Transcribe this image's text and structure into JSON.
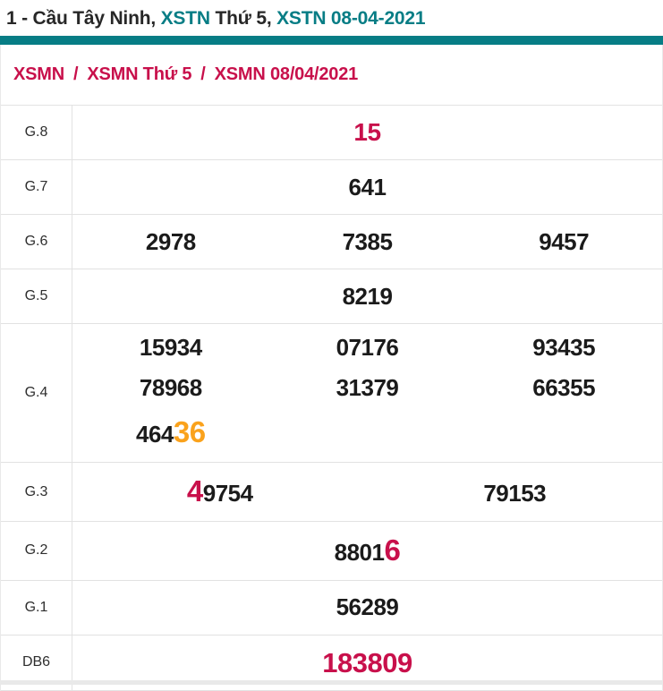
{
  "colors": {
    "teal": "#077d85",
    "red": "#c8104b",
    "orange": "#faa21c",
    "dark": "#272727",
    "value": "#1b1b1b"
  },
  "title": {
    "parts": [
      {
        "text": "1 - Cầu Tây Ninh, ",
        "link": false
      },
      {
        "text": "XSTN",
        "link": true
      },
      {
        "text": " Thứ 5, ",
        "link": false
      },
      {
        "text": "XSTN 08-04-2021",
        "link": true
      }
    ]
  },
  "breadcrumb": {
    "separator": "/",
    "items": [
      "XSMN",
      "XSMN Thứ 5",
      "XSMN 08/04/2021"
    ]
  },
  "results": {
    "rows": [
      {
        "label": "G.8",
        "lines": [
          [
            [
              {
                "text": "15",
                "color": "red",
                "size": "lg"
              }
            ]
          ]
        ]
      },
      {
        "label": "G.7",
        "lines": [
          [
            [
              {
                "text": "641"
              }
            ]
          ]
        ]
      },
      {
        "label": "G.6",
        "lines": [
          [
            [
              {
                "text": "2978"
              }
            ],
            [
              {
                "text": "7385"
              }
            ],
            [
              {
                "text": "9457"
              }
            ]
          ]
        ]
      },
      {
        "label": "G.5",
        "lines": [
          [
            [
              {
                "text": "8219"
              }
            ]
          ]
        ]
      },
      {
        "label": "G.4",
        "lines": [
          [
            [
              {
                "text": "15934"
              }
            ],
            [
              {
                "text": "07176"
              }
            ],
            [
              {
                "text": "93435"
              }
            ]
          ],
          [
            [
              {
                "text": "78968"
              }
            ],
            [
              {
                "text": "31379"
              }
            ],
            [
              {
                "text": "66355"
              }
            ]
          ],
          [
            [
              {
                "text": "464"
              },
              {
                "text": "36",
                "color": "orange",
                "large": true
              }
            ],
            [],
            []
          ]
        ]
      },
      {
        "label": "G.3",
        "lines": [
          [
            [
              {
                "text": "4",
                "color": "red",
                "large": true
              },
              {
                "text": "9754"
              }
            ],
            [
              {
                "text": "79153"
              }
            ]
          ]
        ]
      },
      {
        "label": "G.2",
        "lines": [
          [
            [
              {
                "text": "8801"
              },
              {
                "text": "6",
                "color": "red",
                "large": true
              }
            ]
          ]
        ]
      },
      {
        "label": "G.1",
        "lines": [
          [
            [
              {
                "text": "56289"
              }
            ]
          ]
        ]
      },
      {
        "label": "DB6",
        "lines": [
          [
            [
              {
                "text": "183809",
                "color": "red",
                "size": "xl"
              }
            ]
          ]
        ]
      }
    ]
  }
}
